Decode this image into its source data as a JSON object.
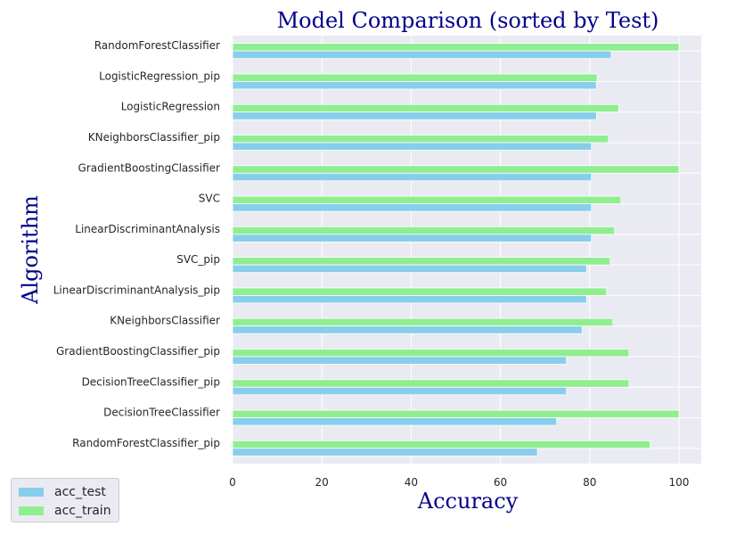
{
  "chart_data": {
    "type": "bar",
    "orientation": "horizontal",
    "title": "Model Comparison (sorted by Test)",
    "xlabel": "Accuracy",
    "ylabel": "Algorithm",
    "xlim": [
      0,
      105
    ],
    "xticks": [
      0,
      20,
      40,
      60,
      80,
      100
    ],
    "grid": true,
    "legend_position": "lower-left outside",
    "categories": [
      "RandomForestClassifier",
      "LogisticRegression_pip",
      "LogisticRegression",
      "KNeighborsClassifier_pip",
      "GradientBoostingClassifier",
      "SVC",
      "LinearDiscriminantAnalysis",
      "SVC_pip",
      "LinearDiscriminantAnalysis_pip",
      "KNeighborsClassifier",
      "GradientBoostingClassifier_pip",
      "DecisionTreeClassifier_pip",
      "DecisionTreeClassifier",
      "RandomForestClassifier_pip"
    ],
    "series": [
      {
        "name": "acc_test",
        "color": "#87ceeb",
        "values": [
          84.8,
          81.5,
          81.5,
          80.4,
          80.4,
          80.4,
          80.4,
          79.3,
          79.3,
          78.3,
          74.8,
          74.8,
          72.6,
          68.3
        ]
      },
      {
        "name": "acc_train",
        "color": "#90ee90",
        "values": [
          100.0,
          81.7,
          86.5,
          84.2,
          100.0,
          87.0,
          85.6,
          84.6,
          83.8,
          85.2,
          88.8,
          88.8,
          100.0,
          93.5
        ]
      }
    ]
  }
}
